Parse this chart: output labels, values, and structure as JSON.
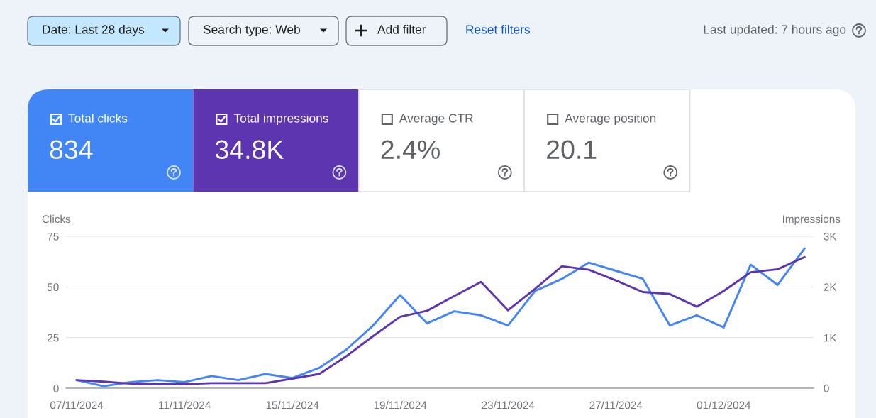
{
  "chart_data": [
    {
      "type": "other",
      "annotations": [
        "Date: Last 28 days",
        "Search type: Web",
        "Add filter",
        "Reset filters",
        "Last updated: 7 hours ago"
      ]
    },
    {
      "type": "other",
      "annotations": [
        "Total clicks",
        "834",
        "Total impressions",
        "34.8K",
        "Average CTR",
        "2.4%",
        "Average position",
        "20.1"
      ],
      "colors": [
        "#4285f4",
        "#5e35b1",
        "#ffffff",
        "#ffffff"
      ]
    },
    {
      "type": "line",
      "x": [
        "2024-11-07",
        "2024-11-08",
        "2024-11-09",
        "2024-11-10",
        "2024-11-11",
        "2024-11-12",
        "2024-11-13",
        "2024-11-14",
        "2024-11-15",
        "2024-11-16",
        "2024-11-17",
        "2024-11-18",
        "2024-11-19",
        "2024-11-20",
        "2024-11-21",
        "2024-11-22",
        "2024-11-23",
        "2024-11-24",
        "2024-11-25",
        "2024-11-26",
        "2024-11-27",
        "2024-11-28",
        "2024-11-29",
        "2024-11-30",
        "2024-12-01",
        "2024-12-02",
        "2024-12-03",
        "2024-12-04"
      ],
      "series": [
        {
          "color": "#4285f4",
          "values": [
            4,
            1,
            3,
            4,
            3,
            6,
            4,
            7,
            5,
            10,
            19,
            31,
            46,
            32,
            38,
            36,
            31,
            48,
            54,
            62,
            58,
            54,
            31,
            36,
            30,
            61,
            51,
            69
          ]
        },
        {
          "color": "#5e35b1",
          "axis": "y2",
          "values": [
            160,
            130,
            90,
            80,
            80,
            100,
            100,
            100,
            190,
            280,
            630,
            1030,
            1410,
            1530,
            1820,
            2100,
            1540,
            1960,
            2410,
            2340,
            2130,
            1900,
            1860,
            1610,
            1920,
            2290,
            2350,
            2590
          ]
        }
      ],
      "ylabel": "Clicks",
      "y2label": "Impressions",
      "xlim": [
        "2024-11-06T14:30",
        "2024-12-04T08:00"
      ],
      "xticks": [
        {
          "value": "2024-11-07",
          "label": "07/11/2024"
        },
        {
          "value": "2024-11-11",
          "label": "11/11/2024"
        },
        {
          "value": "2024-11-15",
          "label": "15/11/2024"
        },
        {
          "value": "2024-11-19",
          "label": "19/11/2024"
        },
        {
          "value": "2024-11-23",
          "label": "23/11/2024"
        },
        {
          "value": "2024-11-27",
          "label": "27/11/2024"
        },
        {
          "value": "2024-12-01",
          "label": "01/12/2024"
        }
      ],
      "ylim": [
        0,
        75
      ],
      "yticks": [
        0,
        25,
        50,
        75
      ],
      "y2lim": [
        0,
        3000
      ],
      "y2ticks": [
        0,
        {
          "value": 1000,
          "label": "1K"
        },
        {
          "value": 2000,
          "label": "2K"
        },
        {
          "value": 3000,
          "label": "3K"
        }
      ],
      "grid": "y"
    }
  ]
}
